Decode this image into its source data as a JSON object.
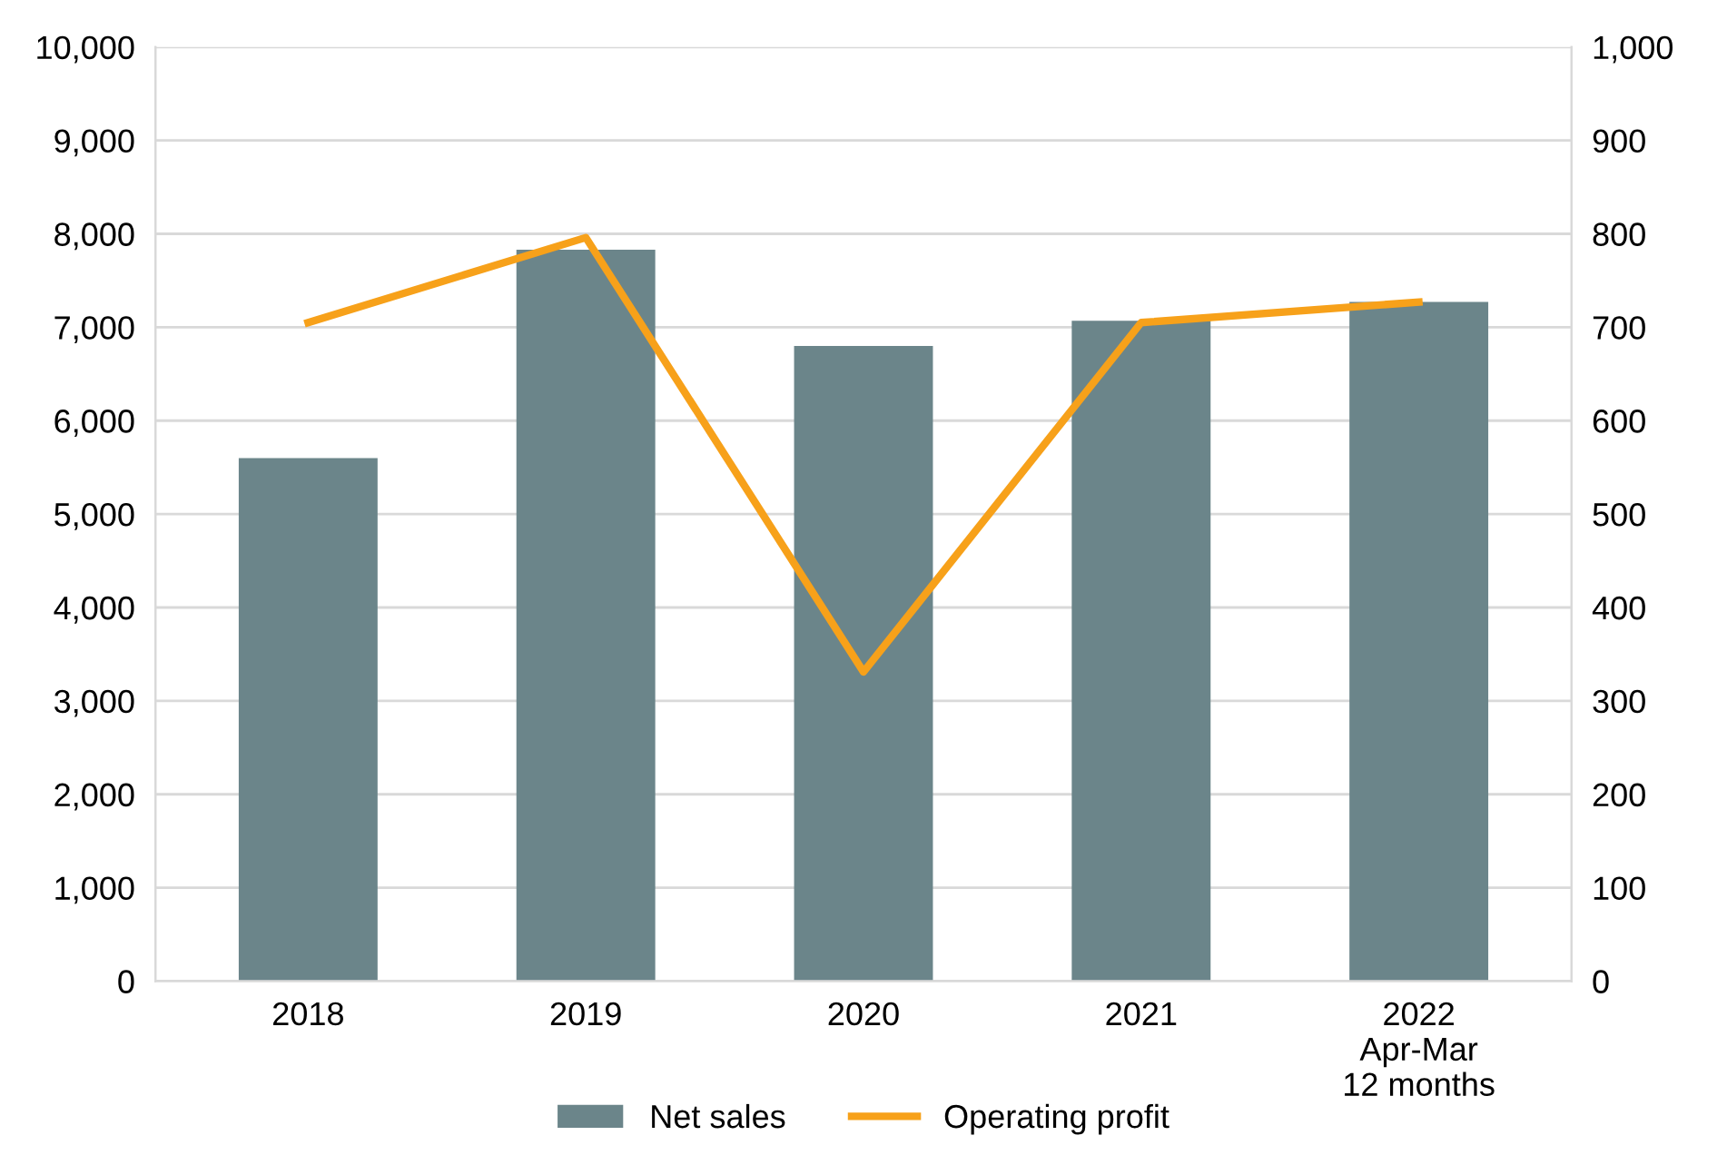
{
  "chart_data": {
    "type": "bar",
    "categories": [
      "2018",
      "2019",
      "2020",
      "2021",
      "2022\nApr-Mar\n12 months"
    ],
    "series": [
      {
        "name": "Net sales",
        "color": "#6b858a",
        "values": [
          5600,
          7830,
          6800,
          7070,
          7270
        ]
      },
      {
        "name": "Operating profit",
        "type": "line",
        "axis": "y2",
        "color": "#f7a11a",
        "values": [
          705,
          796,
          331,
          705,
          727
        ]
      }
    ],
    "ylim": [
      0,
      10000
    ],
    "yticks": [
      {
        "value": 0,
        "label": "0"
      },
      {
        "value": 1000,
        "label": "1,000"
      },
      {
        "value": 2000,
        "label": "2,000"
      },
      {
        "value": 3000,
        "label": "3,000"
      },
      {
        "value": 4000,
        "label": "4,000"
      },
      {
        "value": 5000,
        "label": "5,000"
      },
      {
        "value": 6000,
        "label": "6,000"
      },
      {
        "value": 7000,
        "label": "7,000"
      },
      {
        "value": 8000,
        "label": "8,000"
      },
      {
        "value": 9000,
        "label": "9,000"
      },
      {
        "value": 10000,
        "label": "10,000"
      }
    ],
    "y2lim": [
      0,
      1000
    ],
    "y2ticks": [
      {
        "value": 0,
        "label": "0"
      },
      {
        "value": 100,
        "label": "100"
      },
      {
        "value": 200,
        "label": "200"
      },
      {
        "value": 300,
        "label": "300"
      },
      {
        "value": 400,
        "label": "400"
      },
      {
        "value": 500,
        "label": "500"
      },
      {
        "value": 600,
        "label": "600"
      },
      {
        "value": 700,
        "label": "700"
      },
      {
        "value": 800,
        "label": "800"
      },
      {
        "value": 900,
        "label": "900"
      },
      {
        "value": 1000,
        "label": "1,000"
      }
    ],
    "grid": "y",
    "legend": "bottom",
    "marker": "none",
    "line_style": "solid"
  }
}
